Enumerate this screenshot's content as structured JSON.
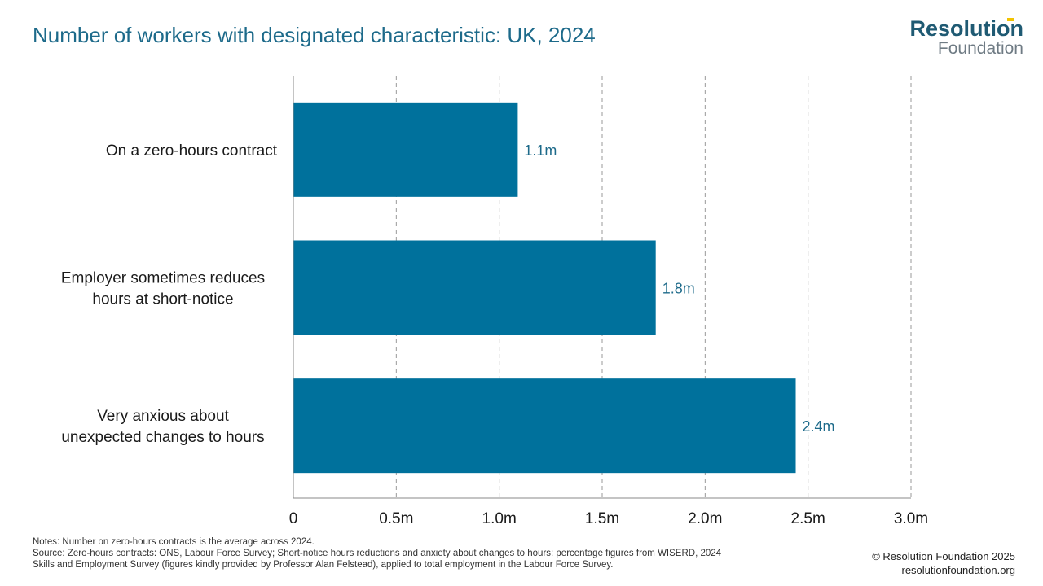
{
  "header": {
    "title": "Number of workers with designated characteristic: UK, 2024"
  },
  "logo": {
    "line1": "Resolution",
    "line2": "Foundation"
  },
  "colors": {
    "bar": "#00719c",
    "title": "#1d6a8a",
    "data_label": "#1d6a8a",
    "grid": "#9a9a9a",
    "axis": "#8a8a8a"
  },
  "chart_data": {
    "type": "bar",
    "orientation": "horizontal",
    "title": "Number of workers with designated characteristic: UK, 2024",
    "categories": [
      [
        "On a zero-hours contract"
      ],
      [
        "Employer sometimes reduces",
        "hours at short-notice"
      ],
      [
        "Very anxious about",
        "unexpected changes to hours"
      ]
    ],
    "values": [
      1.09,
      1.76,
      2.44
    ],
    "value_labels": [
      "1.1m",
      "1.8m",
      "2.4m"
    ],
    "xlim": [
      0,
      3.0
    ],
    "xticks": [
      0,
      0.5,
      1.0,
      1.5,
      2.0,
      2.5,
      3.0
    ],
    "xtick_labels": [
      "0",
      "0.5m",
      "1.0m",
      "1.5m",
      "2.0m",
      "2.5m",
      "3.0m"
    ],
    "grid": "vertical-dashed",
    "legend": "none"
  },
  "footer": {
    "notes": [
      "Notes: Number on zero-hours contracts is the average across 2024.",
      "Source: Zero-hours contracts: ONS, Labour Force Survey; Short-notice hours reductions and anxiety  about changes to hours: percentage figures from WISERD, 2024",
      "Skills and Employment Survey (figures kindly provided by Professor Alan Felstead), applied to total employment in the Labour Force Survey."
    ],
    "copyright": "© Resolution Foundation 2025",
    "website": "resolutionfoundation.org"
  }
}
